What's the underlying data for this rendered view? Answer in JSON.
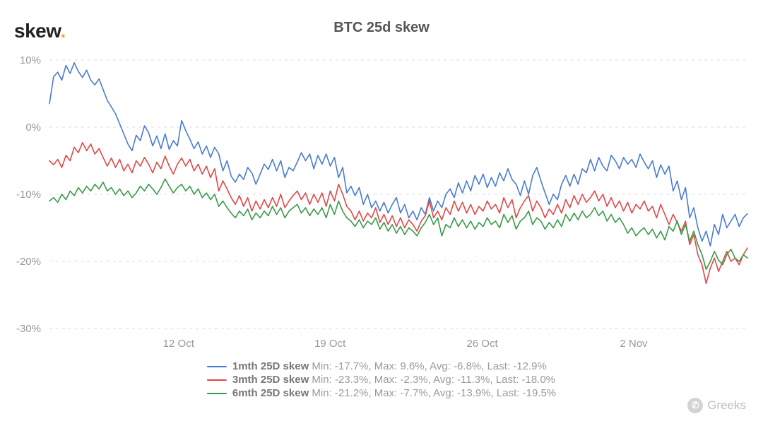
{
  "logo": {
    "text": "skew",
    "accent": "."
  },
  "title": "BTC 25d skew",
  "chart": {
    "type": "line",
    "background_color": "#ffffff",
    "grid_color": "#dcdcdc",
    "axis_text_color": "#999999",
    "line_width": 1.6,
    "y": {
      "min": -30,
      "max": 10,
      "tick_step": 10,
      "suffix": "%"
    },
    "x": {
      "ticks": [
        {
          "pos": 0.185,
          "label": "12 Oct"
        },
        {
          "pos": 0.402,
          "label": "19 Oct"
        },
        {
          "pos": 0.62,
          "label": "26 Oct"
        },
        {
          "pos": 0.837,
          "label": "2 Nov"
        }
      ]
    },
    "series": [
      {
        "name": "1mth 25D skew",
        "color": "#4a7bd0",
        "stats": {
          "min": "-17.7%",
          "max": "9.6%",
          "avg": "-6.8%",
          "last": "-12.9%"
        },
        "values": [
          3.5,
          7.5,
          8.2,
          7.0,
          9.2,
          8.0,
          9.6,
          8.3,
          7.4,
          8.5,
          7.0,
          6.3,
          7.2,
          5.6,
          4.0,
          3.0,
          2.0,
          0.5,
          -1.0,
          -2.5,
          -3.5,
          -1.2,
          -2.0,
          0.2,
          -0.8,
          -2.8,
          -1.3,
          -3.2,
          -1.0,
          -3.3,
          -2.0,
          -2.8,
          1.0,
          -0.5,
          -1.8,
          -3.2,
          -2.2,
          -4.0,
          -2.8,
          -4.5,
          -3.0,
          -4.0,
          -6.5,
          -5.0,
          -7.3,
          -8.2,
          -7.0,
          -7.8,
          -6.0,
          -6.8,
          -8.5,
          -7.0,
          -5.5,
          -6.3,
          -4.8,
          -6.5,
          -5.0,
          -7.5,
          -6.0,
          -6.5,
          -5.2,
          -3.8,
          -5.0,
          -4.0,
          -6.2,
          -4.2,
          -5.5,
          -4.0,
          -5.8,
          -4.5,
          -7.5,
          -6.0,
          -9.8,
          -8.8,
          -10.2,
          -9.0,
          -11.5,
          -10.0,
          -12.0,
          -11.0,
          -12.5,
          -11.2,
          -12.8,
          -11.5,
          -10.5,
          -12.8,
          -11.5,
          -13.5,
          -12.5,
          -13.8,
          -12.0,
          -13.0,
          -10.5,
          -12.5,
          -11.0,
          -12.0,
          -10.0,
          -9.2,
          -10.5,
          -8.3,
          -9.8,
          -8.0,
          -9.5,
          -7.2,
          -8.5,
          -7.0,
          -9.0,
          -7.5,
          -8.8,
          -6.8,
          -8.0,
          -6.2,
          -7.8,
          -8.5,
          -10.2,
          -8.0,
          -10.0,
          -7.2,
          -6.0,
          -8.0,
          -9.8,
          -11.5,
          -10.0,
          -10.8,
          -8.5,
          -7.2,
          -8.8,
          -7.0,
          -8.5,
          -6.2,
          -6.8,
          -4.8,
          -6.5,
          -4.5,
          -5.8,
          -6.5,
          -4.2,
          -5.0,
          -6.2,
          -4.5,
          -5.5,
          -4.8,
          -6.0,
          -4.0,
          -5.2,
          -6.2,
          -5.0,
          -7.5,
          -5.6,
          -7.0,
          -5.8,
          -9.5,
          -8.0,
          -10.8,
          -9.0,
          -13.5,
          -12.0,
          -15.0,
          -17.0,
          -15.5,
          -17.7,
          -14.5,
          -16.0,
          -13.0,
          -15.0,
          -14.0,
          -13.0,
          -14.8,
          -13.5,
          -12.9
        ]
      },
      {
        "name": "3mth 25D skew",
        "color": "#e04848",
        "stats": {
          "min": "-23.3%",
          "max": "-2.3%",
          "avg": "-11.3%",
          "last": "-18.0%"
        },
        "values": [
          -5.0,
          -5.6,
          -4.8,
          -6.0,
          -4.2,
          -5.0,
          -3.0,
          -3.8,
          -2.3,
          -3.5,
          -2.5,
          -4.0,
          -3.2,
          -4.5,
          -5.8,
          -4.6,
          -6.0,
          -4.8,
          -6.5,
          -5.5,
          -6.8,
          -5.0,
          -5.8,
          -4.5,
          -5.5,
          -6.8,
          -5.2,
          -6.2,
          -4.3,
          -5.8,
          -7.0,
          -5.5,
          -4.6,
          -5.8,
          -4.8,
          -6.5,
          -5.5,
          -7.0,
          -5.8,
          -7.5,
          -6.2,
          -9.5,
          -8.0,
          -9.2,
          -10.5,
          -11.5,
          -10.2,
          -11.8,
          -10.5,
          -12.5,
          -11.0,
          -12.2,
          -10.8,
          -12.0,
          -10.5,
          -11.8,
          -10.0,
          -12.0,
          -11.0,
          -10.2,
          -9.5,
          -10.8,
          -9.8,
          -11.5,
          -10.0,
          -11.2,
          -9.8,
          -11.8,
          -9.5,
          -11.0,
          -8.5,
          -10.0,
          -11.8,
          -12.5,
          -13.8,
          -12.5,
          -14.0,
          -12.8,
          -13.5,
          -12.0,
          -14.2,
          -13.0,
          -14.5,
          -13.2,
          -14.8,
          -13.5,
          -15.0,
          -13.8,
          -14.5,
          -15.5,
          -14.0,
          -13.2,
          -11.0,
          -13.5,
          -12.5,
          -13.8,
          -12.0,
          -13.0,
          -11.0,
          -12.5,
          -11.2,
          -12.8,
          -11.5,
          -13.0,
          -11.8,
          -12.5,
          -11.0,
          -12.2,
          -11.5,
          -12.8,
          -10.5,
          -12.0,
          -10.8,
          -13.5,
          -12.0,
          -11.0,
          -10.2,
          -12.5,
          -11.0,
          -12.0,
          -13.5,
          -12.2,
          -13.0,
          -11.5,
          -12.8,
          -10.8,
          -12.0,
          -10.2,
          -11.5,
          -10.0,
          -11.2,
          -10.5,
          -9.5,
          -11.0,
          -10.0,
          -11.8,
          -10.5,
          -12.0,
          -11.0,
          -12.5,
          -11.2,
          -12.8,
          -11.5,
          -12.2,
          -11.0,
          -12.5,
          -11.8,
          -13.5,
          -11.5,
          -13.0,
          -14.5,
          -13.0,
          -14.2,
          -15.5,
          -14.0,
          -17.5,
          -16.0,
          -19.0,
          -20.5,
          -23.3,
          -21.0,
          -19.5,
          -21.5,
          -20.0,
          -18.5,
          -20.0,
          -19.5,
          -20.5,
          -19.0,
          -18.0
        ]
      },
      {
        "name": "6mth 25D skew",
        "color": "#3a9a4a",
        "stats": {
          "min": "-21.2%",
          "max": "-7.7%",
          "avg": "-13.9%",
          "last": "-19.5%"
        },
        "values": [
          -11.0,
          -10.5,
          -11.2,
          -10.0,
          -10.8,
          -9.5,
          -10.2,
          -9.0,
          -9.8,
          -8.8,
          -9.5,
          -8.5,
          -9.2,
          -8.2,
          -9.5,
          -9.0,
          -10.0,
          -9.2,
          -10.2,
          -9.5,
          -10.5,
          -9.8,
          -8.8,
          -9.5,
          -8.5,
          -9.2,
          -10.0,
          -9.0,
          -7.7,
          -8.8,
          -9.8,
          -9.0,
          -8.5,
          -9.5,
          -8.8,
          -10.0,
          -9.2,
          -10.5,
          -9.8,
          -10.8,
          -10.0,
          -11.8,
          -11.0,
          -12.0,
          -12.8,
          -13.5,
          -12.5,
          -13.2,
          -12.2,
          -13.8,
          -12.8,
          -13.5,
          -12.5,
          -13.2,
          -11.8,
          -13.0,
          -12.0,
          -13.5,
          -12.5,
          -12.0,
          -11.5,
          -12.8,
          -12.0,
          -13.2,
          -12.2,
          -13.0,
          -12.0,
          -13.5,
          -11.5,
          -13.0,
          -11.0,
          -12.5,
          -13.5,
          -14.0,
          -14.8,
          -13.8,
          -15.0,
          -14.0,
          -14.5,
          -13.5,
          -15.2,
          -14.2,
          -15.5,
          -14.5,
          -15.8,
          -14.8,
          -16.0,
          -15.0,
          -15.5,
          -16.2,
          -15.0,
          -14.2,
          -13.0,
          -14.5,
          -13.5,
          -16.2,
          -14.5,
          -15.0,
          -13.5,
          -14.8,
          -13.8,
          -15.0,
          -14.0,
          -15.2,
          -14.2,
          -14.8,
          -13.5,
          -14.5,
          -14.0,
          -15.0,
          -13.0,
          -14.2,
          -13.2,
          -15.2,
          -14.0,
          -13.5,
          -12.5,
          -14.5,
          -13.5,
          -14.0,
          -15.2,
          -14.2,
          -15.0,
          -13.8,
          -14.8,
          -13.0,
          -14.0,
          -12.8,
          -13.8,
          -12.5,
          -13.5,
          -13.0,
          -12.0,
          -13.2,
          -12.5,
          -14.0,
          -13.0,
          -14.2,
          -13.5,
          -14.5,
          -15.8,
          -15.0,
          -16.2,
          -15.5,
          -15.0,
          -16.0,
          -15.2,
          -16.5,
          -15.5,
          -16.8,
          -14.8,
          -15.5,
          -14.0,
          -16.0,
          -14.5,
          -17.0,
          -15.5,
          -17.5,
          -19.0,
          -21.2,
          -20.0,
          -18.5,
          -19.8,
          -20.5,
          -19.0,
          -18.2,
          -19.5,
          -20.0,
          -19.0,
          -19.5
        ]
      }
    ]
  },
  "legend_format": "Min: {min}, Max: {max}, Avg: {avg}, Last: {last}",
  "watermark": {
    "icon_glyph": "✆",
    "label": "Greeks"
  }
}
